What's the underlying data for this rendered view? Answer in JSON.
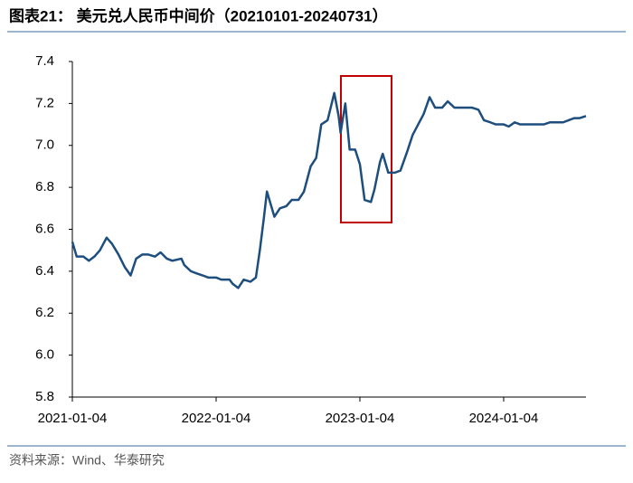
{
  "chart_data": {
    "type": "line",
    "title": "图表21： 美元兑人民币中间价（20210101-20240731）",
    "source": "资料来源：Wind、华泰研究",
    "x": [
      "2021-01-04",
      "2021-01-15",
      "2021-02-01",
      "2021-02-15",
      "2021-03-01",
      "2021-03-15",
      "2021-04-01",
      "2021-04-15",
      "2021-05-01",
      "2021-05-17",
      "2021-06-01",
      "2021-06-15",
      "2021-07-01",
      "2021-07-15",
      "2021-08-02",
      "2021-08-16",
      "2021-09-01",
      "2021-09-15",
      "2021-10-08",
      "2021-10-15",
      "2021-11-01",
      "2021-11-15",
      "2021-12-01",
      "2021-12-15",
      "2022-01-04",
      "2022-01-17",
      "2022-02-07",
      "2022-02-15",
      "2022-03-01",
      "2022-03-15",
      "2022-04-01",
      "2022-04-15",
      "2022-04-25",
      "2022-05-05",
      "2022-05-13",
      "2022-06-01",
      "2022-06-15",
      "2022-07-01",
      "2022-07-15",
      "2022-08-01",
      "2022-08-15",
      "2022-09-01",
      "2022-09-15",
      "2022-09-28",
      "2022-10-14",
      "2022-10-31",
      "2022-11-11",
      "2022-11-16",
      "2022-11-28",
      "2022-12-09",
      "2022-12-23",
      "2023-01-04",
      "2023-01-16",
      "2023-02-01",
      "2023-02-10",
      "2023-02-24",
      "2023-03-03",
      "2023-03-17",
      "2023-04-03",
      "2023-04-17",
      "2023-05-04",
      "2023-05-18",
      "2023-06-01",
      "2023-06-15",
      "2023-06-30",
      "2023-07-14",
      "2023-08-01",
      "2023-08-15",
      "2023-09-01",
      "2023-09-15",
      "2023-10-02",
      "2023-10-16",
      "2023-11-01",
      "2023-11-15",
      "2023-12-01",
      "2023-12-15",
      "2024-01-04",
      "2024-01-17",
      "2024-02-01",
      "2024-02-15",
      "2024-03-01",
      "2024-03-15",
      "2024-04-01",
      "2024-04-15",
      "2024-05-01",
      "2024-05-15",
      "2024-06-03",
      "2024-06-17",
      "2024-07-01",
      "2024-07-15",
      "2024-07-31"
    ],
    "series": [
      {
        "color": "#1d4e7e",
        "values": [
          6.54,
          6.47,
          6.47,
          6.45,
          6.47,
          6.5,
          6.56,
          6.53,
          6.48,
          6.42,
          6.38,
          6.46,
          6.48,
          6.48,
          6.47,
          6.49,
          6.46,
          6.45,
          6.46,
          6.43,
          6.4,
          6.39,
          6.38,
          6.37,
          6.37,
          6.36,
          6.36,
          6.34,
          6.32,
          6.36,
          6.35,
          6.37,
          6.5,
          6.65,
          6.78,
          6.66,
          6.7,
          6.71,
          6.74,
          6.74,
          6.78,
          6.9,
          6.94,
          7.1,
          7.12,
          7.25,
          7.14,
          7.06,
          7.2,
          6.98,
          6.98,
          6.91,
          6.74,
          6.73,
          6.79,
          6.92,
          6.96,
          6.87,
          6.87,
          6.88,
          6.97,
          7.05,
          7.1,
          7.15,
          7.23,
          7.18,
          7.18,
          7.21,
          7.18,
          7.18,
          7.18,
          7.18,
          7.17,
          7.12,
          7.11,
          7.1,
          7.1,
          7.09,
          7.11,
          7.1,
          7.1,
          7.1,
          7.1,
          7.1,
          7.11,
          7.11,
          7.11,
          7.12,
          7.13,
          7.13,
          7.14
        ]
      }
    ],
    "xlim": [
      "2021-01-04",
      "2024-07-31"
    ],
    "xticks": [
      "2021-01-04",
      "2022-01-04",
      "2023-01-04",
      "2024-01-04"
    ],
    "ylim": [
      5.8,
      7.4
    ],
    "yticks": [
      5.8,
      {
        "value": 6,
        "label": "6.0"
      },
      6.2,
      6.4,
      6.6,
      6.8,
      {
        "value": 7,
        "label": "7.0"
      },
      7.2,
      7.4
    ]
  }
}
